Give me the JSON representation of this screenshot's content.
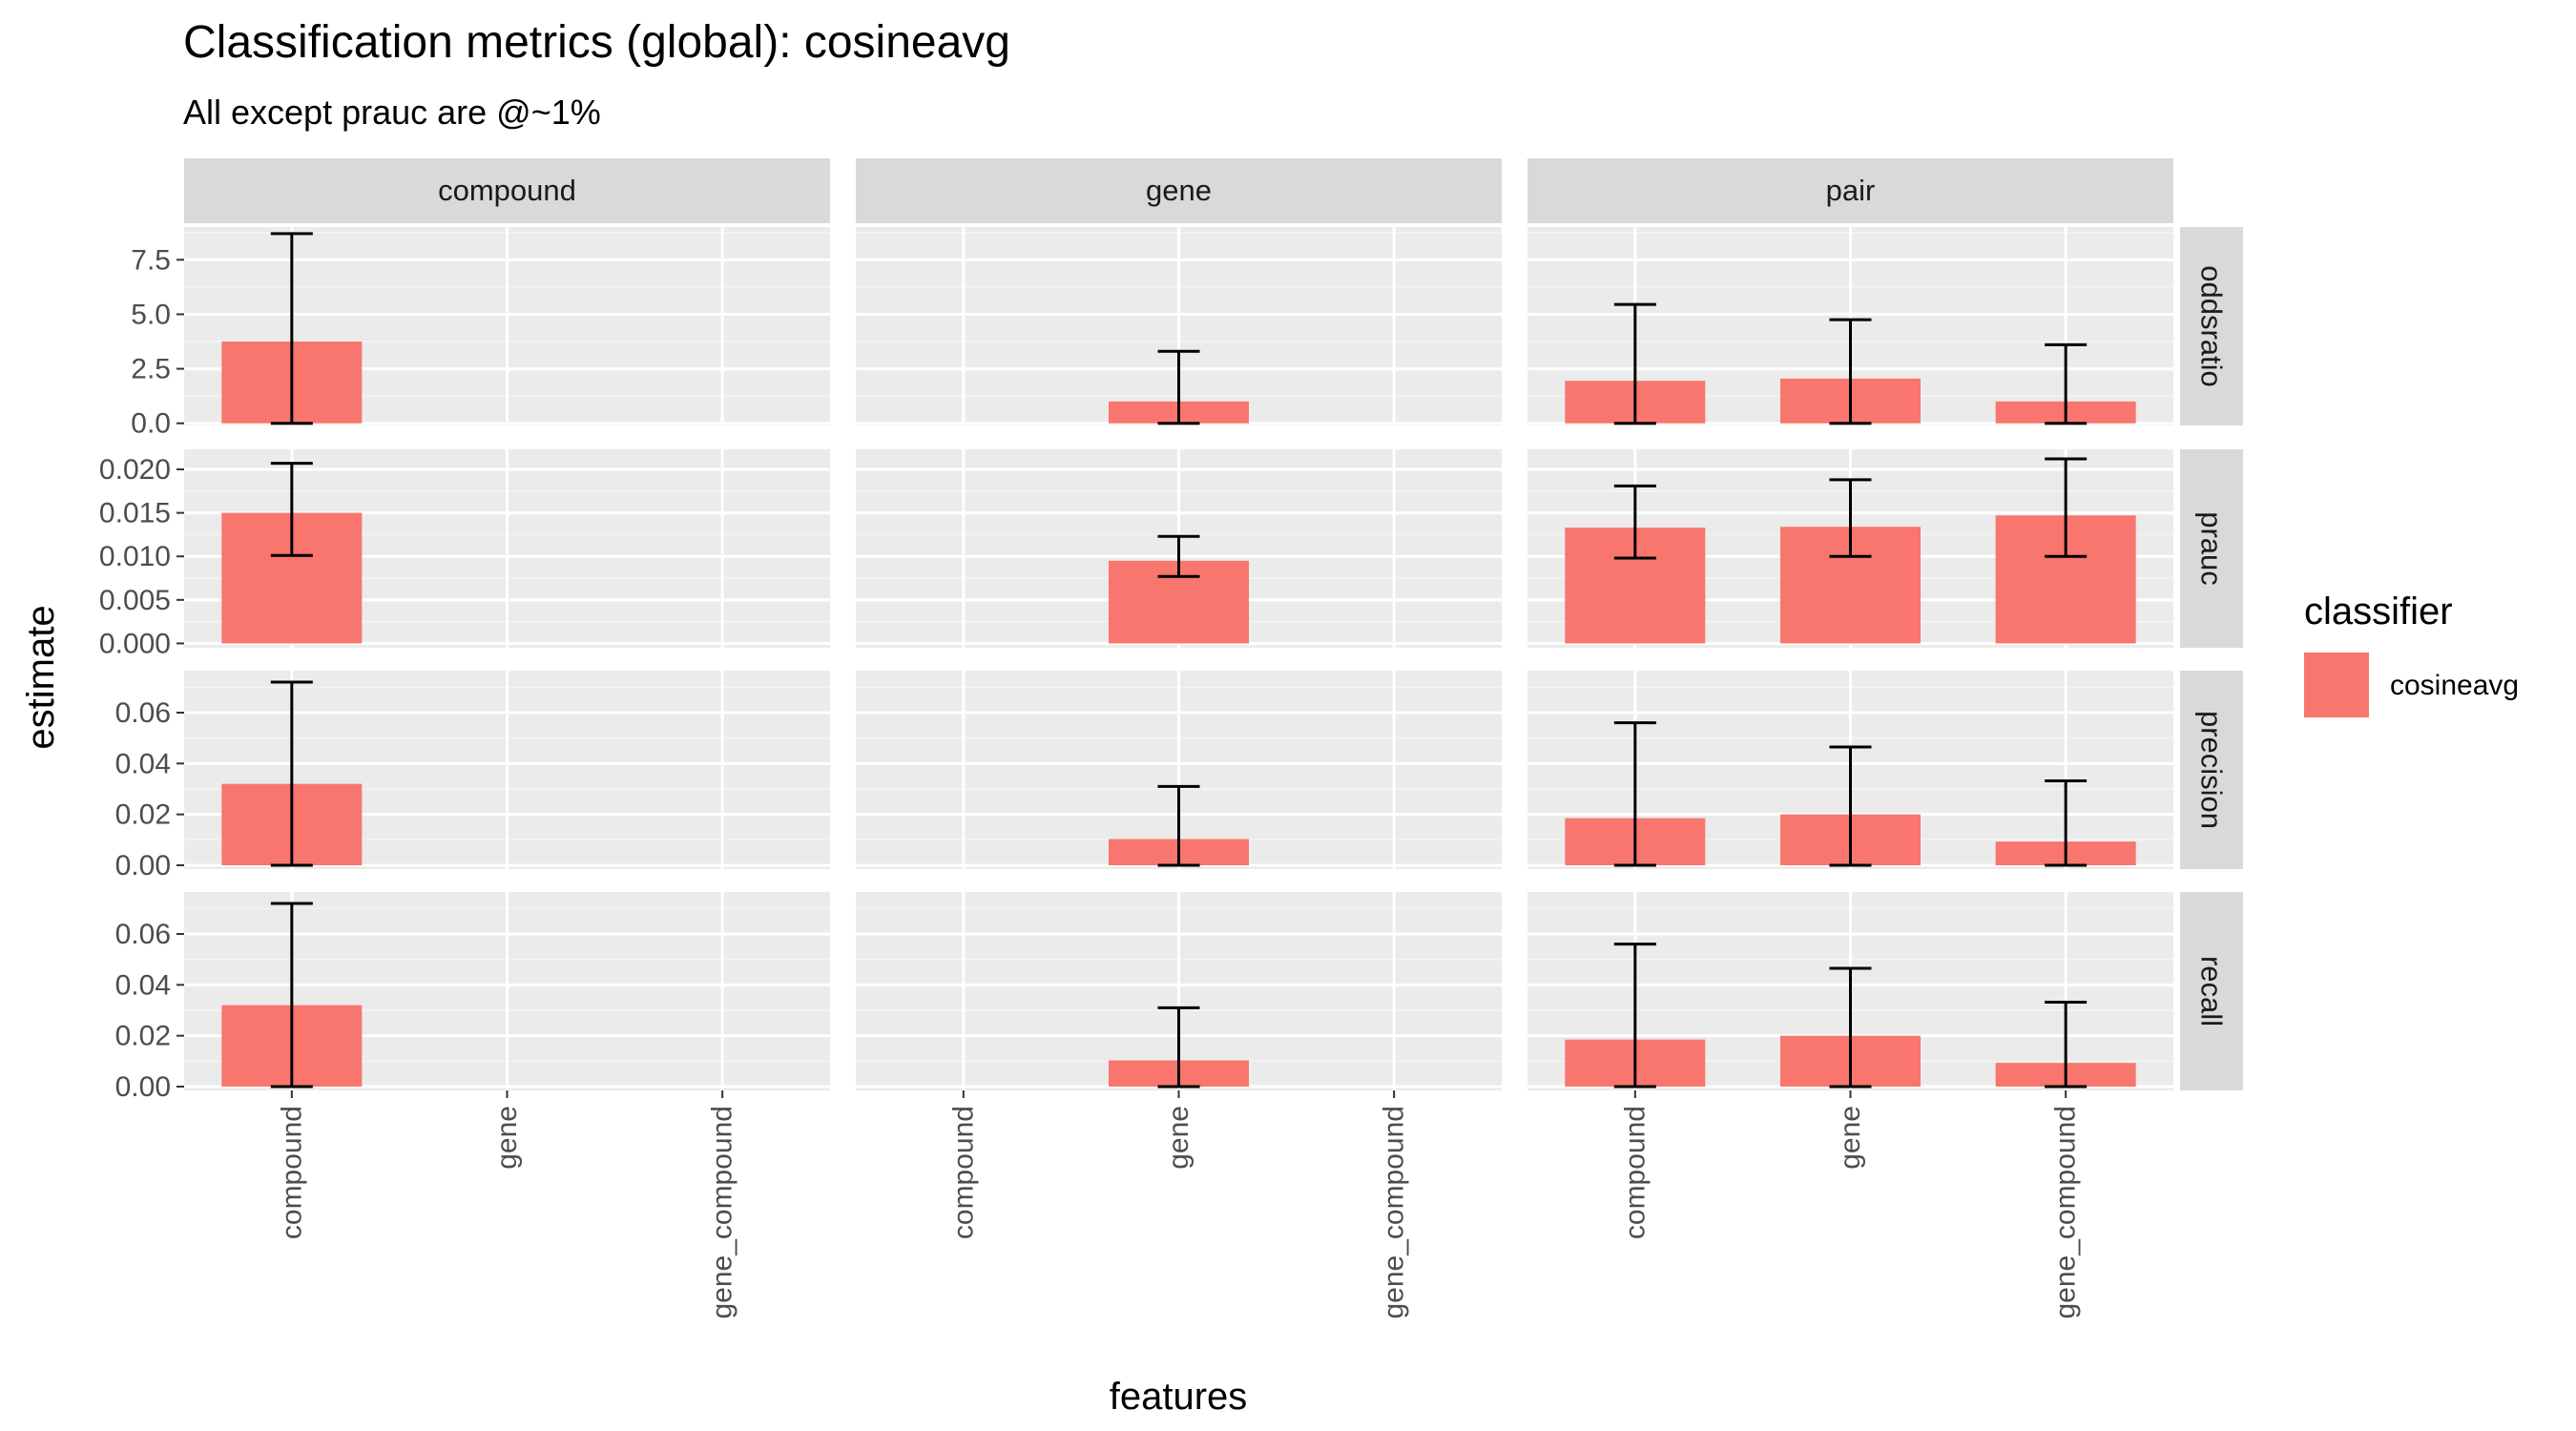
{
  "title": "Classification metrics (global): cosineavg",
  "subtitle": "All except prauc are @~1%",
  "colors": {
    "panel_bg": "#ebebeb",
    "grid_major": "#ffffff",
    "grid_minor": "#f4f4f4",
    "strip_bg": "#d9d9d9",
    "bar_fill": "#f8766d",
    "error_bar": "#000000"
  },
  "chart_data": {
    "type": "bar",
    "xlabel": "features",
    "ylabel": "estimate",
    "legend": {
      "title": "classifier",
      "placement": "right",
      "entries": [
        "cosineavg"
      ]
    },
    "facet_columns": [
      "compound",
      "gene",
      "pair"
    ],
    "facet_rows": [
      "oddsratio",
      "prauc",
      "precision",
      "recall"
    ],
    "categories": [
      "compound",
      "gene",
      "gene_compound"
    ],
    "rows": [
      {
        "metric": "oddsratio",
        "ylim": [
          -0.1,
          9.0
        ],
        "ticks": [
          0,
          2.5,
          5,
          7.5
        ],
        "tick_labels": [
          "0.0",
          "2.5",
          "5.0",
          "7.5"
        ],
        "panels": [
          {
            "facet": "compound",
            "bars": [
              {
                "x": "compound",
                "value": 3.75,
                "lower": 0.0,
                "upper": 8.7
              }
            ]
          },
          {
            "facet": "gene",
            "bars": [
              {
                "x": "gene",
                "value": 1.0,
                "lower": 0.0,
                "upper": 3.3
              }
            ]
          },
          {
            "facet": "pair",
            "bars": [
              {
                "x": "compound",
                "value": 1.95,
                "lower": 0.0,
                "upper": 5.45
              },
              {
                "x": "gene",
                "value": 2.05,
                "lower": 0.0,
                "upper": 4.75
              },
              {
                "x": "gene_compound",
                "value": 1.0,
                "lower": 0.0,
                "upper": 3.6
              }
            ]
          }
        ]
      },
      {
        "metric": "prauc",
        "ylim": [
          -0.0005,
          0.0223
        ],
        "ticks": [
          0,
          0.005,
          0.01,
          0.015,
          0.02
        ],
        "tick_labels": [
          "0.000",
          "0.005",
          "0.010",
          "0.015",
          "0.020"
        ],
        "panels": [
          {
            "facet": "compound",
            "bars": [
              {
                "x": "compound",
                "value": 0.015,
                "lower": 0.0101,
                "upper": 0.0207
              }
            ]
          },
          {
            "facet": "gene",
            "bars": [
              {
                "x": "gene",
                "value": 0.0095,
                "lower": 0.0077,
                "upper": 0.0123
              }
            ]
          },
          {
            "facet": "pair",
            "bars": [
              {
                "x": "compound",
                "value": 0.0133,
                "lower": 0.0098,
                "upper": 0.0181
              },
              {
                "x": "gene",
                "value": 0.0134,
                "lower": 0.01,
                "upper": 0.0188
              },
              {
                "x": "gene_compound",
                "value": 0.0147,
                "lower": 0.01,
                "upper": 0.0212
              }
            ]
          }
        ]
      },
      {
        "metric": "precision",
        "ylim": [
          -0.0015,
          0.0765
        ],
        "ticks": [
          0,
          0.02,
          0.04,
          0.06
        ],
        "tick_labels": [
          "0.00",
          "0.02",
          "0.04",
          "0.06"
        ],
        "panels": [
          {
            "facet": "compound",
            "bars": [
              {
                "x": "compound",
                "value": 0.032,
                "lower": 0.0,
                "upper": 0.072
              }
            ]
          },
          {
            "facet": "gene",
            "bars": [
              {
                "x": "gene",
                "value": 0.0103,
                "lower": 0.0,
                "upper": 0.031
              }
            ]
          },
          {
            "facet": "pair",
            "bars": [
              {
                "x": "compound",
                "value": 0.0185,
                "lower": 0.0,
                "upper": 0.056
              },
              {
                "x": "gene",
                "value": 0.02,
                "lower": 0.0,
                "upper": 0.0465
              },
              {
                "x": "gene_compound",
                "value": 0.0093,
                "lower": 0.0,
                "upper": 0.0332
              }
            ]
          }
        ]
      },
      {
        "metric": "recall",
        "ylim": [
          -0.0015,
          0.0765
        ],
        "ticks": [
          0,
          0.02,
          0.04,
          0.06
        ],
        "tick_labels": [
          "0.00",
          "0.02",
          "0.04",
          "0.06"
        ],
        "panels": [
          {
            "facet": "compound",
            "bars": [
              {
                "x": "compound",
                "value": 0.032,
                "lower": 0.0,
                "upper": 0.072
              }
            ]
          },
          {
            "facet": "gene",
            "bars": [
              {
                "x": "gene",
                "value": 0.0103,
                "lower": 0.0,
                "upper": 0.031
              }
            ]
          },
          {
            "facet": "pair",
            "bars": [
              {
                "x": "compound",
                "value": 0.0185,
                "lower": 0.0,
                "upper": 0.056
              },
              {
                "x": "gene",
                "value": 0.02,
                "lower": 0.0,
                "upper": 0.0465
              },
              {
                "x": "gene_compound",
                "value": 0.0093,
                "lower": 0.0,
                "upper": 0.0332
              }
            ]
          }
        ]
      }
    ]
  }
}
